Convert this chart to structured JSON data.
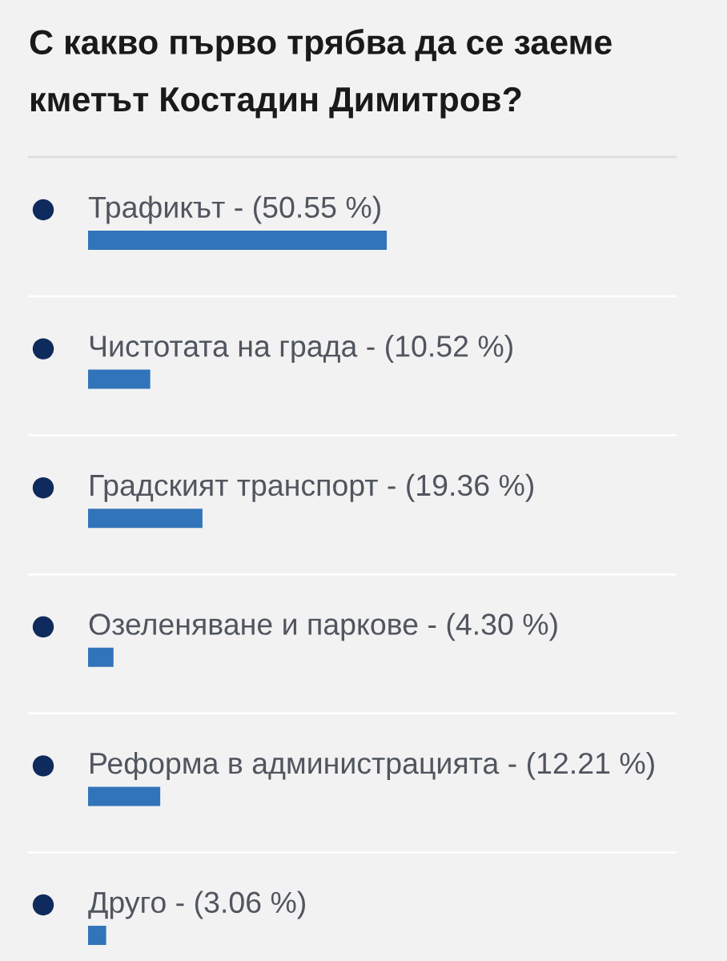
{
  "chart_data": {
    "type": "bar",
    "orientation": "horizontal",
    "title": "С какво първо трябва да се заеме\nкметът Костадин Димитров?",
    "categories": [
      null,
      null,
      null,
      null,
      null,
      null
    ],
    "values": [
      50.55,
      10.52,
      19.36,
      4.3,
      12.21,
      3.06
    ],
    "value_labels": [
      "Трафикът - (50.55 %)",
      "Чистотата на града - (10.52 %)",
      "Градският транспорт - (19.36 %)",
      "Озеленяване и паркове - (4.30 %)",
      "Реформа в администрацията - (12.21 %)",
      "Друго - (3.06 %)"
    ],
    "color": "#3274b9"
  }
}
